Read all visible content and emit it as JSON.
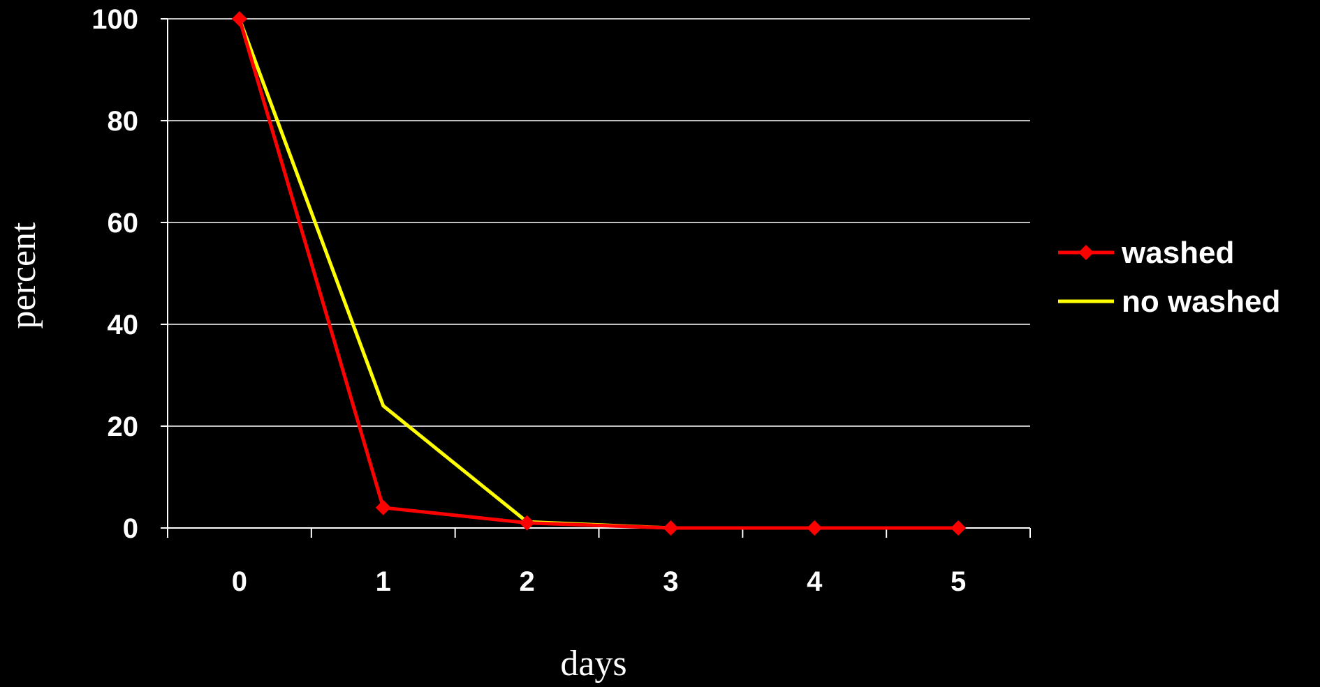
{
  "chart_data": {
    "type": "line",
    "xlabel": "days",
    "ylabel": "percent",
    "x": [
      0,
      1,
      2,
      3,
      4,
      5
    ],
    "x_tick_labels": [
      "0",
      "1",
      "2",
      "3",
      "4",
      "5"
    ],
    "y_ticks": [
      0,
      20,
      40,
      60,
      80,
      100
    ],
    "y_tick_labels": [
      "0",
      "20",
      "40",
      "60",
      "80",
      "100"
    ],
    "ylim": [
      0,
      100
    ],
    "grid": "horizontal",
    "legend_position": "right",
    "series": [
      {
        "name": "washed",
        "color": "#ff0000",
        "marker": "diamond",
        "values": [
          100,
          4,
          1,
          0,
          0,
          0
        ]
      },
      {
        "name": "no washed",
        "color": "#ffff00",
        "marker": "none",
        "values": [
          100,
          24,
          1.2,
          0,
          0,
          0
        ]
      }
    ]
  }
}
